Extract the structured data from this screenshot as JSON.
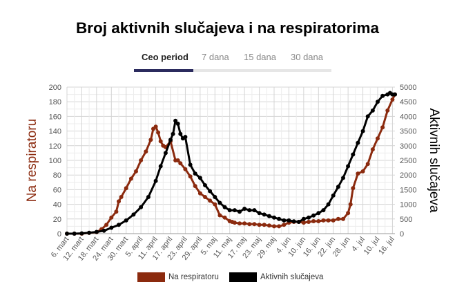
{
  "title": "Broj aktivnih slučajeva i na respiratorima",
  "tabs": [
    {
      "label": "Ceo period",
      "active": true
    },
    {
      "label": "7 dana",
      "active": false
    },
    {
      "label": "15 dana",
      "active": false
    },
    {
      "label": "30 dana",
      "active": false
    }
  ],
  "colors": {
    "respirator": "#8b2a0e",
    "active": "#000000",
    "grid": "#dddddd"
  },
  "chart_data": {
    "type": "line",
    "ylabel": "Na respiratoru",
    "y2label": "Aktivnih slučajeva",
    "ylim": [
      0,
      200
    ],
    "y2lim": [
      0,
      5000
    ],
    "yticks": [
      0,
      20,
      40,
      60,
      80,
      100,
      120,
      140,
      160,
      180,
      200
    ],
    "y2ticks": [
      0,
      500,
      1000,
      1500,
      2000,
      2500,
      3000,
      3500,
      4000,
      4500,
      5000
    ],
    "x_tick_labels": [
      "6. mart",
      "12. mart",
      "18. mart",
      "24. mart",
      "30. mart",
      "5. april",
      "11. april",
      "17. april",
      "23. april",
      "29. april",
      "5. maj",
      "11. maj",
      "17. maj",
      "23. maj",
      "29. maj",
      "4. jun",
      "10. jun",
      "16. jun",
      "22. jun",
      "28. jun",
      "4. jul",
      "10. jul",
      "16. jul"
    ],
    "x_tick_days": [
      0,
      6,
      12,
      18,
      24,
      30,
      36,
      42,
      48,
      54,
      60,
      66,
      72,
      78,
      84,
      90,
      96,
      102,
      108,
      114,
      120,
      126,
      132
    ],
    "x_range": [
      0,
      133
    ],
    "grid": true,
    "legend": "bottom",
    "series": [
      {
        "name": "Na respiratoru",
        "axis": "left",
        "x": [
          0,
          3,
          6,
          9,
          12,
          14,
          16,
          18,
          20,
          21,
          22,
          24,
          26,
          28,
          30,
          32,
          34,
          35,
          36,
          37,
          38,
          39,
          40,
          42,
          44,
          45,
          46,
          48,
          50,
          52,
          54,
          56,
          58,
          60,
          62,
          64,
          66,
          67,
          68,
          70,
          72,
          74,
          76,
          78,
          80,
          82,
          84,
          86,
          88,
          90,
          92,
          94,
          96,
          98,
          100,
          102,
          104,
          106,
          108,
          110,
          112,
          114,
          115,
          116,
          118,
          120,
          122,
          124,
          126,
          128,
          130,
          132,
          133
        ],
        "y": [
          0,
          0,
          0,
          1,
          2,
          6,
          12,
          22,
          30,
          44,
          50,
          62,
          75,
          85,
          100,
          112,
          128,
          143,
          146,
          138,
          126,
          120,
          118,
          126,
          100,
          100,
          96,
          88,
          78,
          65,
          55,
          50,
          45,
          40,
          25,
          22,
          17,
          16,
          15,
          14,
          14,
          13,
          13,
          12,
          12,
          11,
          10,
          10,
          12,
          15,
          16,
          16,
          15,
          16,
          17,
          17,
          18,
          18,
          18,
          20,
          20,
          28,
          40,
          62,
          82,
          85,
          95,
          115,
          130,
          145,
          168,
          183,
          190
        ]
      },
      {
        "name": "Aktivnih slučajeva",
        "axis": "right",
        "x": [
          0,
          3,
          6,
          9,
          12,
          15,
          18,
          21,
          24,
          27,
          30,
          33,
          36,
          38,
          40,
          42,
          43,
          44,
          45,
          46,
          47,
          48,
          50,
          52,
          54,
          56,
          58,
          60,
          62,
          64,
          66,
          68,
          70,
          72,
          74,
          76,
          78,
          80,
          82,
          84,
          86,
          88,
          90,
          92,
          94,
          96,
          98,
          100,
          102,
          104,
          106,
          108,
          110,
          112,
          114,
          116,
          118,
          120,
          122,
          124,
          126,
          128,
          130,
          131,
          132,
          133
        ],
        "y": [
          0,
          0,
          10,
          30,
          60,
          100,
          200,
          300,
          450,
          650,
          900,
          1250,
          1800,
          2300,
          2750,
          3200,
          3400,
          3850,
          3750,
          3400,
          3250,
          3300,
          2350,
          2050,
          1900,
          1650,
          1450,
          1250,
          1050,
          900,
          800,
          800,
          750,
          850,
          800,
          800,
          700,
          650,
          600,
          550,
          500,
          450,
          450,
          420,
          400,
          500,
          550,
          620,
          700,
          800,
          1000,
          1300,
          1600,
          1900,
          2300,
          2700,
          3100,
          3500,
          4000,
          4200,
          4500,
          4700,
          4750,
          4800,
          4750,
          4750
        ]
      }
    ]
  }
}
